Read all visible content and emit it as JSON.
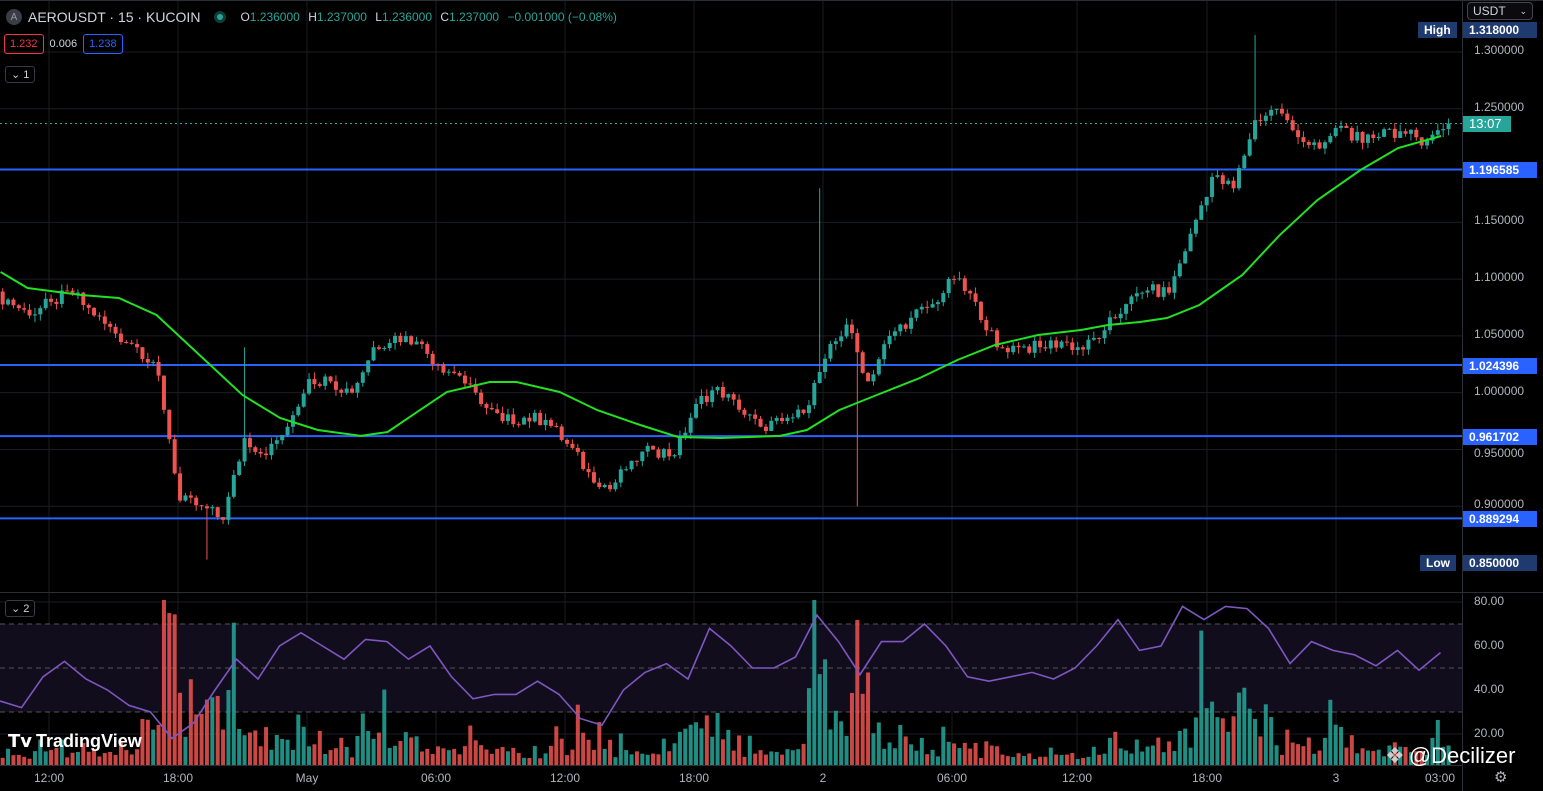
{
  "header": {
    "symbol_badge": "A",
    "symbol": "AEROUSDT · 15 · KUCOIN",
    "ohlc": {
      "o_label": "O",
      "o": "1.236000",
      "h_label": "H",
      "h": "1.237000",
      "l_label": "L",
      "l": "1.236000",
      "c_label": "C",
      "c": "1.237000",
      "change": "−0.001000 (−0.08%)"
    },
    "spread": {
      "sell": "1.232",
      "spread": "0.006",
      "buy": "1.238"
    },
    "pane1_toggle": "⌄ 1",
    "pane2_toggle": "⌄ 2"
  },
  "currency_select": {
    "value": "USDT",
    "icon": "chevron-down-icon"
  },
  "price_axis": {
    "ticks": [
      "1.300000",
      "1.250000",
      "1.150000",
      "1.100000",
      "1.050000",
      "1.000000",
      "0.950000",
      "0.900000"
    ],
    "countdown": "13:07",
    "high_label": "High",
    "high_value": "1.318000",
    "low_label": "Low",
    "low_value": "0.850000",
    "levels": [
      "1.196585",
      "1.024396",
      "0.961702",
      "0.889294"
    ]
  },
  "rsi_axis": {
    "ticks": [
      "80.00",
      "60.00",
      "40.00",
      "20.00"
    ]
  },
  "time_axis": {
    "labels": [
      "12:00",
      "18:00",
      "May",
      "06:00",
      "12:00",
      "18:00",
      "2",
      "06:00",
      "12:00",
      "18:00",
      "3",
      "03:00"
    ]
  },
  "colors": {
    "up": "#26a69a",
    "down": "#ef5350",
    "ma": "#22e022",
    "rsi": "#7e57c2",
    "level": "#2962ff",
    "countdown_bg": "#26a69a",
    "level_label_bg": "#2962ff",
    "high_low_bg": "#1e3a6e"
  },
  "branding": {
    "logo": "TradingView",
    "watermark": "@Decilizer"
  },
  "chart_data": {
    "type": "candlestick",
    "interval": "15m (hourly closes listed)",
    "start": "04-30 09:45",
    "ylim": [
      0.85,
      1.318
    ],
    "hourly_close": [
      1.082,
      1.068,
      1.08,
      1.088,
      1.068,
      1.052,
      1.04,
      1.015,
      0.905,
      0.9,
      0.888,
      0.96,
      0.945,
      0.97,
      1.012,
      1.01,
      1.0,
      1.04,
      1.05,
      1.045,
      1.025,
      1.015,
      0.99,
      0.975,
      0.978,
      0.976,
      0.955,
      0.93,
      0.915,
      0.94,
      0.95,
      0.945,
      0.99,
      1.005,
      0.985,
      0.97,
      0.975,
      0.982,
      1.03,
      1.06,
      1.01,
      1.05,
      1.066,
      1.078,
      1.1,
      1.08,
      1.04,
      1.04,
      1.04,
      1.045,
      1.038,
      1.055,
      1.078,
      1.09,
      1.088,
      1.14,
      1.19,
      1.18,
      1.24,
      1.25,
      1.225,
      1.215,
      1.235,
      1.22,
      1.232,
      1.228,
      1.222,
      1.237
    ],
    "notable_wicks": [
      {
        "time": "04-30 19:15",
        "low": 0.853
      },
      {
        "time": "04-30 21:00",
        "high": 1.04
      },
      {
        "time": "05-01 23:45",
        "high": 1.18
      },
      {
        "time": "05-02 01:30",
        "low": 0.9
      },
      {
        "time": "05-02 20:00",
        "high": 1.315
      }
    ],
    "moving_average": [
      [
        "04-30 09:45",
        1.1063
      ],
      [
        "04-30 11:00",
        1.0922
      ],
      [
        "04-30 13:30",
        1.086
      ],
      [
        "04-30 15:15",
        1.0834
      ],
      [
        "04-30 17:00",
        1.0684
      ],
      [
        "04-30 19:00",
        1.0332
      ],
      [
        "04-30 21:00",
        0.998
      ],
      [
        "04-30 22:45",
        0.9777
      ],
      [
        "05-01 00:30",
        0.9671
      ],
      [
        "05-01 02:30",
        0.9619
      ],
      [
        "05-01 03:45",
        0.9654
      ],
      [
        "05-01 05:15",
        0.9847
      ],
      [
        "05-01 06:30",
        1.0006
      ],
      [
        "05-01 08:30",
        1.0094
      ],
      [
        "05-01 09:45",
        1.0094
      ],
      [
        "05-01 11:45",
        1.0006
      ],
      [
        "05-01 13:30",
        0.9847
      ],
      [
        "05-01 15:30",
        0.9715
      ],
      [
        "05-01 17:15",
        0.961
      ],
      [
        "05-01 19:15",
        0.9601
      ],
      [
        "05-01 22:00",
        0.9619
      ],
      [
        "05-01 23:15",
        0.9671
      ],
      [
        "05-02 00:45",
        0.9847
      ],
      [
        "05-02 02:30",
        0.998
      ],
      [
        "05-02 04:30",
        1.0129
      ],
      [
        "05-02 06:15",
        1.0288
      ],
      [
        "05-02 08:00",
        1.042
      ],
      [
        "05-02 10:00",
        1.0508
      ],
      [
        "05-02 12:00",
        1.0552
      ],
      [
        "05-02 13:15",
        1.0596
      ],
      [
        "05-02 14:45",
        1.0622
      ],
      [
        "05-02 16:00",
        1.0658
      ],
      [
        "05-02 17:30",
        1.0772
      ],
      [
        "05-02 19:30",
        1.1036
      ],
      [
        "05-02 21:15",
        1.1389
      ],
      [
        "05-02 23:00",
        1.1697
      ],
      [
        "05-03 01:00",
        1.1961
      ],
      [
        "05-03 02:45",
        1.2155
      ],
      [
        "05-03 04:45",
        1.226
      ]
    ],
    "rsi_hourly": [
      35,
      32,
      46,
      53,
      45,
      40,
      33,
      30,
      18,
      25,
      40,
      54,
      45,
      60,
      66,
      60,
      54,
      63,
      62,
      54,
      60,
      46,
      36,
      38,
      38,
      44,
      38,
      27,
      24,
      40,
      48,
      52,
      45,
      68,
      60,
      50,
      50,
      55,
      74,
      62,
      47,
      62,
      62,
      70,
      60,
      46,
      44,
      46,
      48,
      45,
      50,
      60,
      72,
      58,
      60,
      78,
      72,
      78,
      77,
      68,
      52,
      62,
      58,
      56,
      51,
      58,
      49,
      57
    ],
    "rsi_bands": [
      70,
      50,
      30
    ],
    "rsi_ylim": [
      14,
      82
    ],
    "volume_hourly": [
      10,
      8,
      12,
      9,
      8,
      10,
      12,
      25,
      100,
      40,
      35,
      45,
      20,
      15,
      22,
      12,
      10,
      18,
      25,
      15,
      10,
      12,
      15,
      10,
      8,
      6,
      15,
      20,
      18,
      10,
      8,
      12,
      22,
      30,
      15,
      10,
      8,
      12,
      65,
      30,
      60,
      20,
      15,
      10,
      12,
      15,
      10,
      8,
      6,
      8,
      6,
      10,
      15,
      10,
      12,
      20,
      45,
      30,
      38,
      25,
      12,
      10,
      25,
      10,
      8,
      10,
      8,
      20
    ]
  }
}
